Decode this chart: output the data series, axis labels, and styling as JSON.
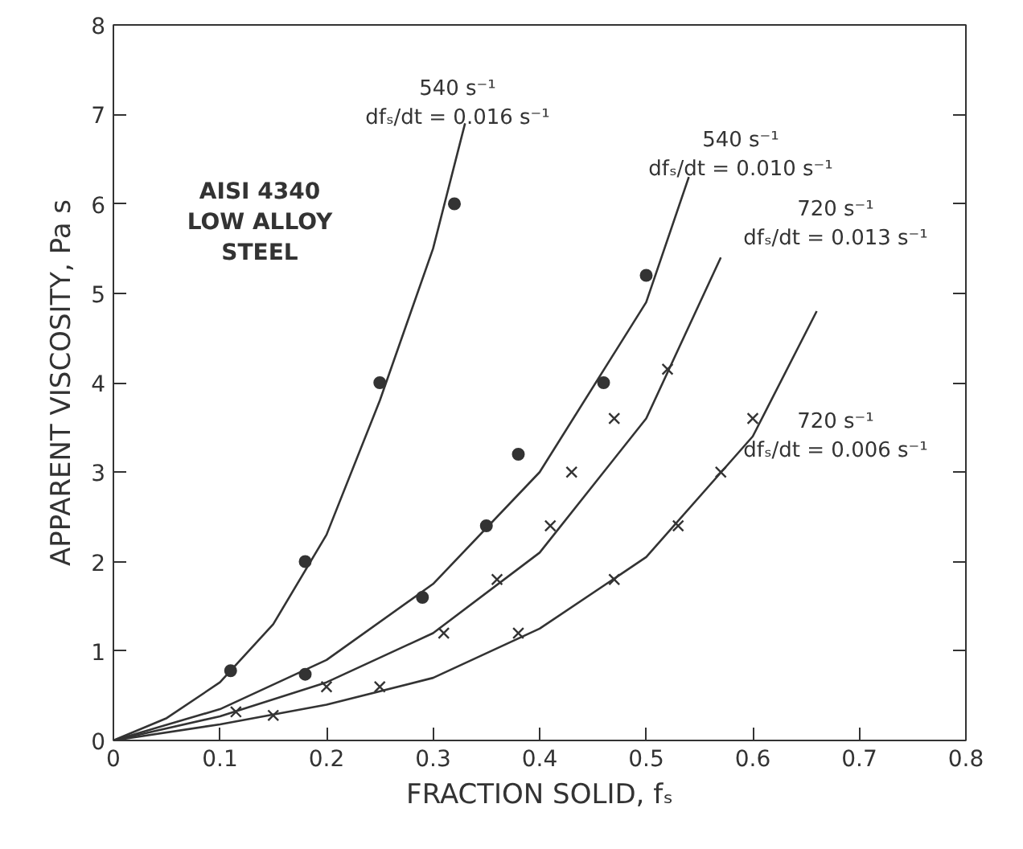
{
  "chart_data": {
    "type": "scatter",
    "xlabel": "FRACTION SOLID, fₛ",
    "ylabel": "APPARENT VISCOSITY, Pa s",
    "xlim": [
      0,
      0.8
    ],
    "ylim": [
      0,
      8
    ],
    "xticks": [
      0,
      0.1,
      0.2,
      0.3,
      0.4,
      0.5,
      0.6,
      0.7,
      0.8
    ],
    "yticks": [
      0,
      1,
      2,
      3,
      4,
      5,
      6,
      7,
      8
    ],
    "grid": false,
    "series": [
      {
        "marker": "circle",
        "color": "#333333",
        "x": [
          0.11,
          0.18,
          0.25,
          0.32
        ],
        "values": [
          0.78,
          2.0,
          4.0,
          6.0
        ]
      },
      {
        "marker": "circle",
        "color": "#333333",
        "x": [
          0.18,
          0.29,
          0.35,
          0.38,
          0.46,
          0.5
        ],
        "values": [
          0.74,
          1.6,
          2.4,
          3.2,
          4.0,
          5.2
        ]
      },
      {
        "marker": "cross",
        "color": "#333333",
        "x": [
          0.115,
          0.2,
          0.31,
          0.36,
          0.41,
          0.43,
          0.47,
          0.52
        ],
        "values": [
          0.32,
          0.6,
          1.2,
          1.8,
          2.4,
          3.0,
          3.6,
          4.15
        ]
      },
      {
        "marker": "cross",
        "color": "#333333",
        "x": [
          0.15,
          0.25,
          0.38,
          0.47,
          0.53,
          0.57,
          0.6
        ],
        "values": [
          0.28,
          0.6,
          1.2,
          1.8,
          2.4,
          3.0,
          3.6
        ]
      },
      {
        "type": "line",
        "marker": "none",
        "line_style": "solid",
        "color": "#333333",
        "x": [
          0,
          0.05,
          0.1,
          0.15,
          0.2,
          0.25,
          0.3,
          0.33
        ],
        "values": [
          0,
          0.25,
          0.65,
          1.3,
          2.3,
          3.8,
          5.5,
          6.9
        ]
      },
      {
        "type": "line",
        "marker": "none",
        "line_style": "solid",
        "color": "#333333",
        "x": [
          0,
          0.1,
          0.2,
          0.3,
          0.4,
          0.5,
          0.54
        ],
        "values": [
          0,
          0.35,
          0.9,
          1.75,
          3.0,
          4.9,
          6.3
        ]
      },
      {
        "type": "line",
        "marker": "none",
        "line_style": "solid",
        "color": "#333333",
        "x": [
          0,
          0.1,
          0.2,
          0.3,
          0.4,
          0.5,
          0.57
        ],
        "values": [
          0,
          0.27,
          0.65,
          1.2,
          2.1,
          3.6,
          5.4
        ]
      },
      {
        "type": "line",
        "marker": "none",
        "line_style": "solid",
        "color": "#333333",
        "x": [
          0,
          0.1,
          0.2,
          0.3,
          0.4,
          0.5,
          0.6,
          0.66
        ],
        "values": [
          0,
          0.18,
          0.4,
          0.7,
          1.25,
          2.05,
          3.4,
          4.8
        ]
      }
    ],
    "annotations": [
      "540 s⁻¹\ndfₛ/dt = 0.016 s⁻¹",
      "540 s⁻¹\ndfₛ/dt = 0.010 s⁻¹",
      "720 s⁻¹\ndfₛ/dt = 0.013 s⁻¹",
      "720 s⁻¹\ndfₛ/dt = 0.006 s⁻¹",
      "AISI 4340\nLOW ALLOY\nSTEEL"
    ]
  }
}
